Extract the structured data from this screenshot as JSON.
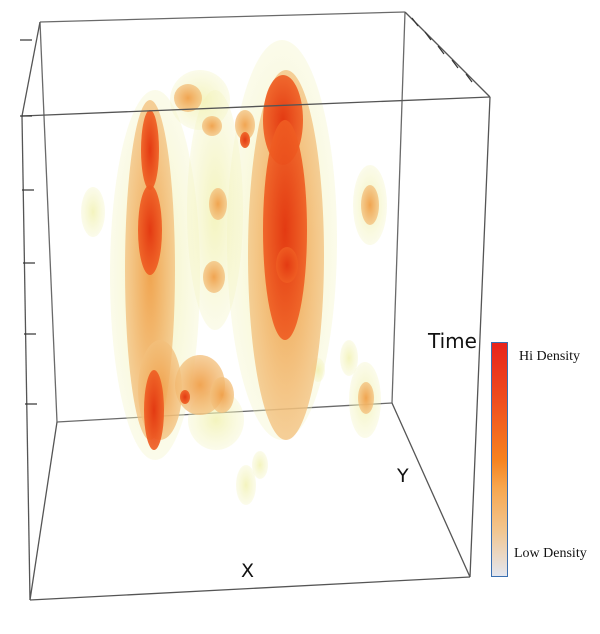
{
  "axes": {
    "x_label": "X",
    "y_label": "Y",
    "time_label": "Time"
  },
  "legend": {
    "high_label": "Hi Density",
    "low_label": "Low Density",
    "colors": [
      "#e8231b",
      "#ef4e1f",
      "#f6821f",
      "#f7a64e",
      "#f2c58e",
      "#e3e6ef"
    ],
    "border_color": "#3a6fb0"
  },
  "density_colors": {
    "low": "#f3f3b4",
    "mid": "#f2b666",
    "high": "#ea4a1a"
  }
}
